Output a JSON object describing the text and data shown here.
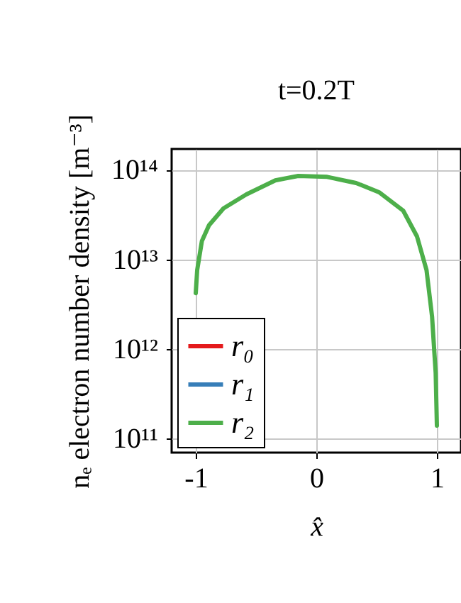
{
  "chart_data": {
    "type": "line",
    "title": "t=0.2T",
    "xlabel": "x̂",
    "ylabel": "nₑ electron number density [m⁻³]",
    "x": [
      -1.0,
      -0.988,
      -0.949,
      -0.89,
      -0.77,
      -0.58,
      -0.34,
      -0.15,
      0.09,
      0.33,
      0.52,
      0.72,
      0.835,
      0.914,
      0.96,
      0.99,
      1.0
    ],
    "series": [
      {
        "name": "r₀",
        "color": "#e41a1c",
        "values": [
          null,
          null,
          null,
          null,
          null,
          null,
          null,
          null,
          null,
          null,
          null,
          null,
          null,
          null,
          null,
          null,
          null
        ]
      },
      {
        "name": "r₁",
        "color": "#377eb8",
        "values": [
          null,
          null,
          null,
          null,
          null,
          null,
          null,
          null,
          null,
          null,
          null,
          null,
          null,
          null,
          null,
          null,
          null
        ]
      },
      {
        "name": "r₂",
        "color": "#4daf4a",
        "values": [
          4200000000000.0,
          7600000000000.0,
          16000000000000.0,
          24000000000000.0,
          37000000000000.0,
          53000000000000.0,
          76000000000000.0,
          85000000000000.0,
          83000000000000.0,
          71000000000000.0,
          56000000000000.0,
          35000000000000.0,
          18000000000000.0,
          7600000000000.0,
          2300000000000.0,
          540000000000.0,
          140000000000.0
        ]
      }
    ],
    "xlim": [
      -1.2,
      1.2
    ],
    "xticks": [
      -1,
      0,
      1
    ],
    "ylim": [
      70000000000.0,
      170000000000000.0
    ],
    "yticks": [
      {
        "value": 100000000000.0,
        "label": "10¹¹"
      },
      {
        "value": 1000000000000.0,
        "label": "10¹²"
      },
      {
        "value": 10000000000000.0,
        "label": "10¹³"
      },
      {
        "value": 100000000000000.0,
        "label": "10¹⁴"
      }
    ],
    "log": true,
    "grid": true,
    "legend": "bottom left",
    "marker": "none",
    "line_style": "solid"
  }
}
